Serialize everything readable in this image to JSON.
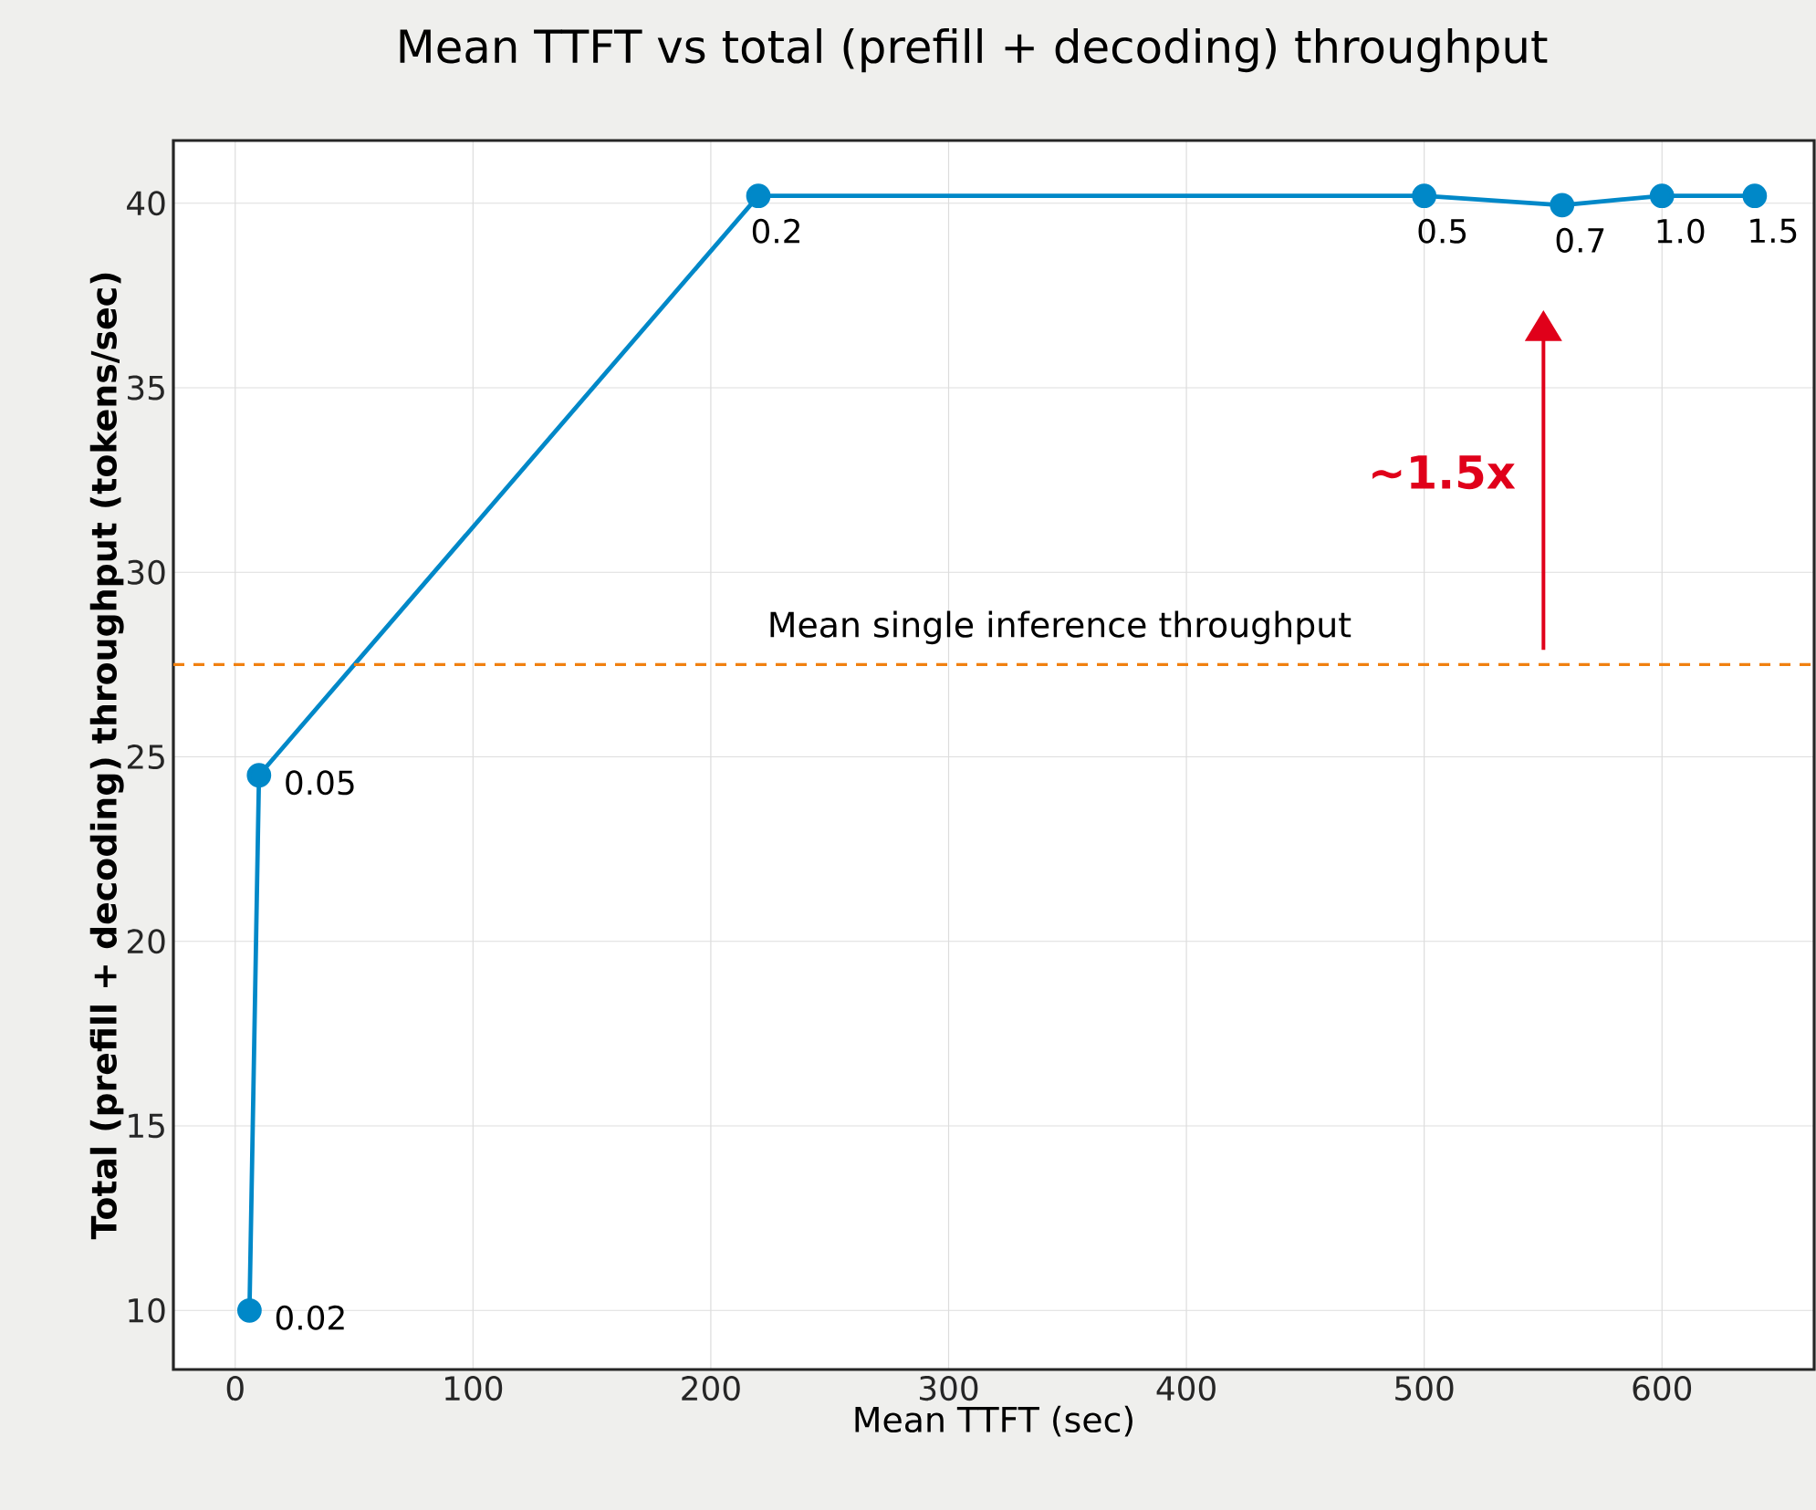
{
  "chart_data": {
    "type": "line",
    "title": "Mean TTFT vs total (prefill + decoding) throughput",
    "xlabel": "Mean TTFT (sec)",
    "ylabel": "Total (prefill + decoding) throughput (tokens/sec)",
    "x": [
      6,
      10,
      220,
      500,
      558,
      600,
      639
    ],
    "values": [
      10.0,
      24.5,
      40.2,
      40.2,
      39.95,
      40.2,
      40.2
    ],
    "color": "#0088c8",
    "marker": "circle",
    "line_style": "solid",
    "grid": true,
    "xlim": [
      -26,
      664
    ],
    "ylim": [
      8.4,
      41.7
    ],
    "xticks": [
      0,
      100,
      200,
      300,
      400,
      500,
      600
    ],
    "yticks": [
      10,
      15,
      20,
      25,
      30,
      35,
      40
    ],
    "ref_lines": [
      {
        "axis": "y",
        "value": 27.5,
        "label": "Mean single inference throughput",
        "color": "#f08010",
        "line_style": "dashed"
      }
    ],
    "annotations": [
      {
        "text": "0.02",
        "x": 6,
        "y": 10.0
      },
      {
        "text": "0.05",
        "x": 10,
        "y": 24.5
      },
      {
        "text": "0.2",
        "x": 220,
        "y": 40.2
      },
      {
        "text": "0.5",
        "x": 500,
        "y": 40.2
      },
      {
        "text": "0.7",
        "x": 558,
        "y": 39.95
      },
      {
        "text": "1.0",
        "x": 600,
        "y": 40.2
      },
      {
        "text": "1.5",
        "x": 639,
        "y": 40.2
      },
      "~1.5x"
    ]
  }
}
